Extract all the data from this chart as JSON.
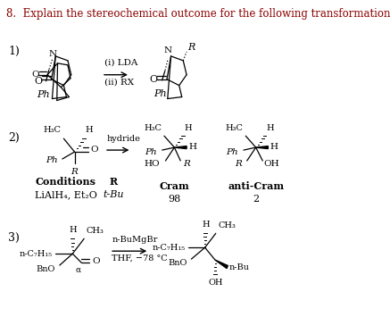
{
  "title": "8.  Explain the stereochemical outcome for the following transformation.",
  "title_color": "#8B0000",
  "title_fontsize": 8.5,
  "bg_color": "#ffffff",
  "figsize": [
    4.37,
    3.55
  ],
  "dpi": 100,
  "sec1_label": "1)",
  "sec1_lda": "(i) LDA",
  "sec1_rx": "(ii) RX",
  "sec1_ph_left": "Ph",
  "sec1_ph_right": "Ph",
  "sec1_r": "R",
  "sec2_label": "2)",
  "sec2_h3c": "H₃C",
  "sec2_h": "H",
  "sec2_ph": "Ph",
  "sec2_r": "R",
  "sec2_o": "O",
  "sec2_hydride": "hydride",
  "sec2_ho": "HO",
  "sec2_oh": "OH",
  "sec2_cond_hdr": "Conditions",
  "sec2_r_hdr": "R",
  "sec2_cram_hdr": "Cram",
  "sec2_anticram_hdr": "anti-Cram",
  "sec2_cond_val": "LiAlH₄, Et₂O",
  "sec2_r_val": "t-Bu",
  "sec2_cram_val": "98",
  "sec2_anticram_val": "2",
  "sec3_label": "3)",
  "sec3_nc7": "n-C₇H₁₅",
  "sec3_h": "H",
  "sec3_ch3": "CH₃",
  "sec3_bno": "BnO",
  "sec3_alpha": "α",
  "sec3_o": "O",
  "sec3_reagent1": "n-BuMgBr",
  "sec3_reagent2": "THF, −78 °C",
  "sec3_nbu": "n-Bu",
  "sec3_oh": "OH"
}
